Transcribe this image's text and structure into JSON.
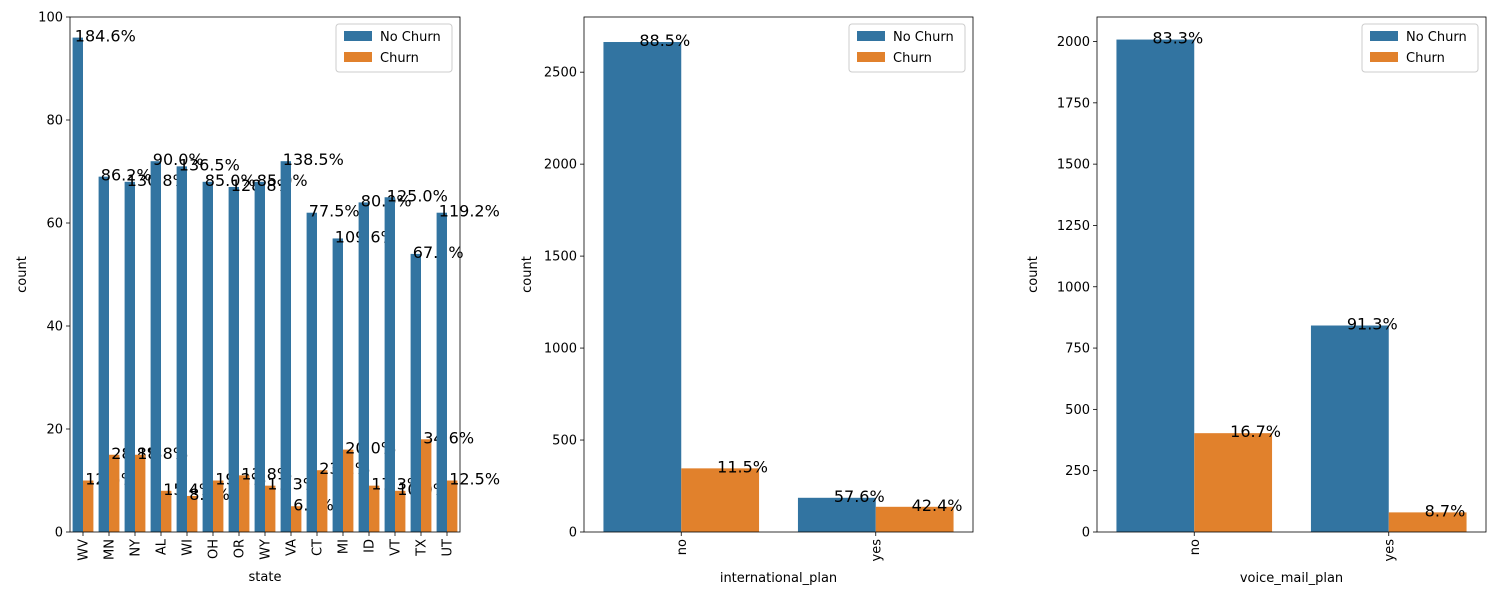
{
  "chart_data": [
    {
      "type": "bar",
      "xlabel": "state",
      "ylabel": "count",
      "ylim": [
        0,
        100
      ],
      "yticks": [
        "0",
        "20",
        "40",
        "60",
        "80",
        "100"
      ],
      "categories": [
        "WV",
        "MN",
        "NY",
        "AL",
        "WI",
        "OH",
        "OR",
        "WY",
        "VA",
        "CT",
        "MI",
        "ID",
        "VT",
        "TX",
        "UT"
      ],
      "series": [
        {
          "name": "No Churn",
          "color": "#3274a1",
          "values": [
            96,
            69,
            68,
            72,
            71,
            68,
            67,
            68,
            72,
            62,
            57,
            64,
            65,
            54,
            62
          ]
        },
        {
          "name": "Churn",
          "color": "#e1812c",
          "values": [
            10,
            15,
            15,
            8,
            7,
            10,
            11,
            9,
            5,
            12,
            16,
            9,
            8,
            18,
            10
          ]
        }
      ],
      "labels_no": [
        "184.6%",
        "86.2%",
        "130.8%",
        "90.0%",
        "136.5%",
        "85.0%",
        "128.8%",
        "85.0%",
        "138.5%",
        "77.5%",
        "109.6%",
        "80.0%",
        "125.0%",
        "67.5%",
        "119.2%"
      ],
      "labels_churn": [
        "12.5%",
        "28.8%",
        "18.8%",
        "15.4%",
        "8.8%",
        "19.2%",
        "13.8%",
        "17.3%",
        "6.2%",
        "23.1%",
        "20.0%",
        "17.3%",
        "10.0%",
        "34.6%",
        "12.5%"
      ],
      "legend": "top-right",
      "grid": false
    },
    {
      "type": "bar",
      "xlabel": "international_plan",
      "ylabel": "count",
      "ylim": [
        0,
        2800
      ],
      "yticks": [
        "0",
        "500",
        "1000",
        "1500",
        "2000",
        "2500"
      ],
      "categories": [
        "no",
        "yes"
      ],
      "series": [
        {
          "name": "No Churn",
          "color": "#3274a1",
          "values": [
            2664,
            186
          ]
        },
        {
          "name": "Churn",
          "color": "#e1812c",
          "values": [
            346,
            137
          ]
        }
      ],
      "labels_no": [
        "88.5%",
        "57.6%"
      ],
      "labels_churn": [
        "11.5%",
        "42.4%"
      ],
      "legend": "top-right",
      "grid": false
    },
    {
      "type": "bar",
      "xlabel": "voice_mail_plan",
      "ylabel": "count",
      "ylim": [
        0,
        2100
      ],
      "yticks": [
        "0",
        "250",
        "500",
        "750",
        "1000",
        "1250",
        "1500",
        "1750",
        "2000"
      ],
      "categories": [
        "no",
        "yes"
      ],
      "series": [
        {
          "name": "No Churn",
          "color": "#3274a1",
          "values": [
            2008,
            842
          ]
        },
        {
          "name": "Churn",
          "color": "#e1812c",
          "values": [
            403,
            80
          ]
        }
      ],
      "labels_no": [
        "83.3%",
        "91.3%"
      ],
      "labels_churn": [
        "16.7%",
        "8.7%"
      ],
      "legend": "top-right",
      "grid": false
    }
  ]
}
